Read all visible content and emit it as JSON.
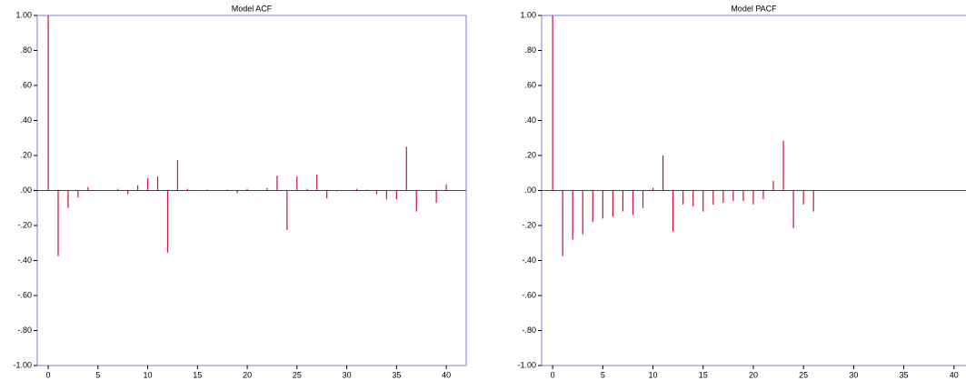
{
  "chart_data": [
    {
      "type": "stem",
      "title": "Model ACF",
      "color": "#d0103a",
      "frame_color": "#7b7be0",
      "x": [
        0,
        1,
        2,
        3,
        4,
        5,
        6,
        7,
        8,
        9,
        10,
        11,
        12,
        13,
        14,
        15,
        16,
        17,
        18,
        19,
        20,
        21,
        22,
        23,
        24,
        25,
        26,
        27,
        28,
        29,
        30,
        31,
        32,
        33,
        34,
        35,
        36,
        37,
        38,
        39,
        40
      ],
      "values": [
        1.0,
        -0.375,
        -0.1,
        -0.04,
        0.02,
        0.0,
        0.0,
        0.01,
        -0.02,
        0.03,
        0.07,
        0.08,
        -0.355,
        0.175,
        0.01,
        0.0,
        0.005,
        0.0,
        0.005,
        -0.015,
        0.01,
        0.0,
        0.015,
        0.085,
        -0.225,
        0.08,
        0.01,
        0.09,
        -0.045,
        -0.005,
        0.0,
        0.01,
        0.005,
        -0.02,
        -0.05,
        -0.05,
        0.25,
        -0.12,
        0.0,
        -0.07,
        0.035
      ],
      "xlim": [
        -1.1,
        42
      ],
      "ylim": [
        -1,
        1
      ],
      "xticks": [
        0,
        5,
        10,
        15,
        20,
        25,
        30,
        35,
        40
      ],
      "yticks": [
        {
          "value": -1,
          "label": "-1.00"
        },
        {
          "value": -0.8,
          "label": "-.80"
        },
        {
          "value": -0.6,
          "label": "-.60"
        },
        {
          "value": -0.4,
          "label": "-.40"
        },
        {
          "value": -0.2,
          "label": "-.20"
        },
        {
          "value": 0,
          "label": ".00"
        },
        {
          "value": 0.2,
          "label": ".20"
        },
        {
          "value": 0.4,
          "label": ".40"
        },
        {
          "value": 0.6,
          "label": ".60"
        },
        {
          "value": 0.8,
          "label": ".80"
        },
        {
          "value": 1,
          "label": "1.00"
        }
      ]
    },
    {
      "type": "stem",
      "title": "Model PACF",
      "color": "#d0103a",
      "frame_color": "#7b7be0",
      "x": [
        0,
        1,
        2,
        3,
        4,
        5,
        6,
        7,
        8,
        9,
        10,
        11,
        12,
        13,
        14,
        15,
        16,
        17,
        18,
        19,
        20,
        21,
        22,
        23,
        24,
        25,
        26
      ],
      "values": [
        1.0,
        -0.375,
        -0.28,
        -0.25,
        -0.18,
        -0.16,
        -0.15,
        -0.12,
        -0.14,
        -0.1,
        0.015,
        0.2,
        -0.235,
        -0.08,
        -0.09,
        -0.12,
        -0.08,
        -0.07,
        -0.06,
        -0.06,
        -0.08,
        -0.05,
        0.055,
        0.285,
        -0.215,
        -0.08,
        -0.12
      ],
      "xlim": [
        -1.1,
        41.2
      ],
      "ylim": [
        -1,
        1
      ],
      "xticks": [
        0,
        5,
        10,
        15,
        20,
        25,
        30,
        35,
        40
      ],
      "yticks": [
        {
          "value": -1,
          "label": "-1.00"
        },
        {
          "value": -0.8,
          "label": "-.80"
        },
        {
          "value": -0.6,
          "label": "-.60"
        },
        {
          "value": -0.4,
          "label": "-.40"
        },
        {
          "value": -0.2,
          "label": "-.20"
        },
        {
          "value": 0,
          "label": ".00"
        },
        {
          "value": 0.2,
          "label": ".20"
        },
        {
          "value": 0.4,
          "label": ".40"
        },
        {
          "value": 0.6,
          "label": ".60"
        },
        {
          "value": 0.8,
          "label": ".80"
        },
        {
          "value": 1,
          "label": "1.00"
        }
      ]
    }
  ]
}
